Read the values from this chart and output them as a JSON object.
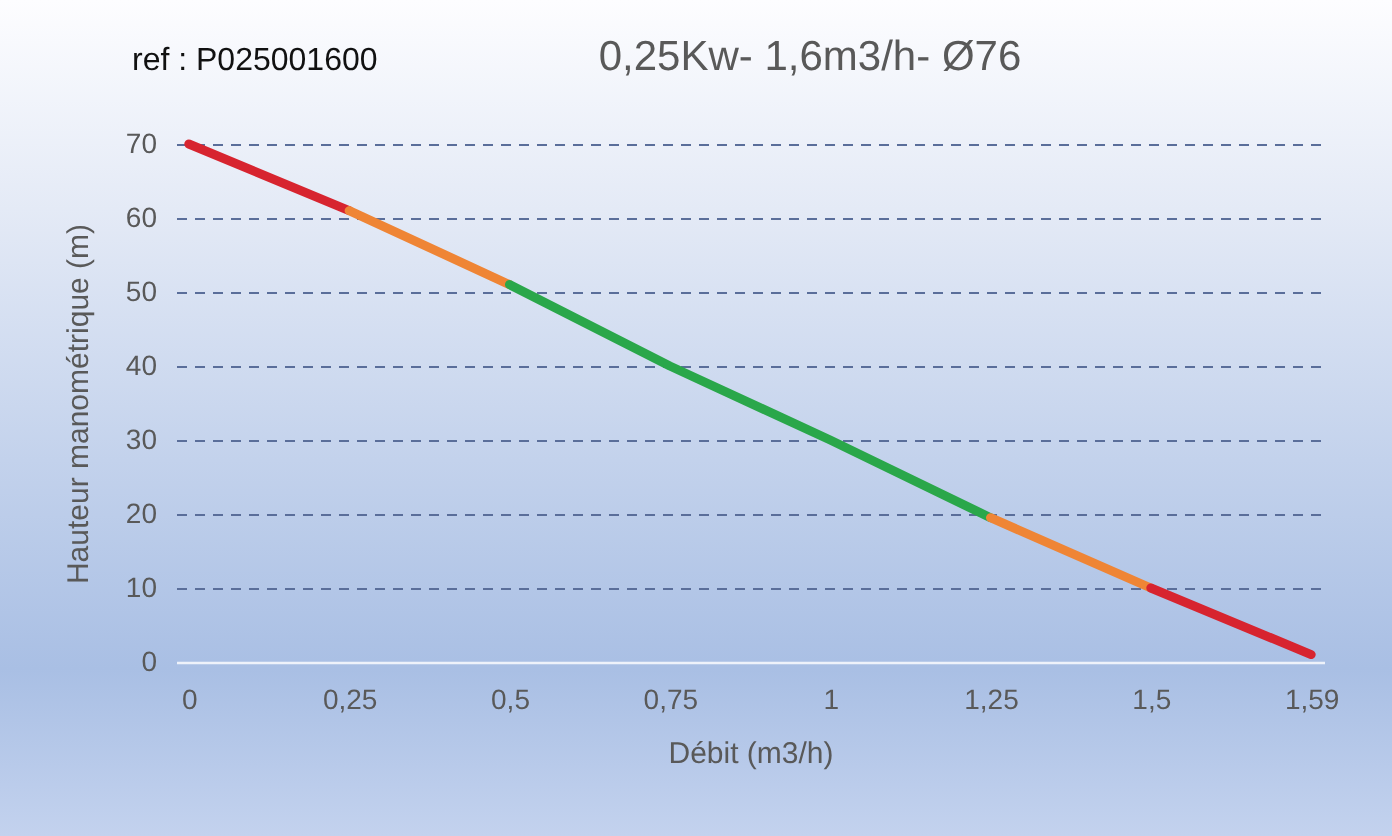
{
  "chart_data": {
    "type": "line",
    "title": "0,25Kw- 1,6m3/h- Ø76",
    "xlabel": "Débit (m3/h)",
    "ylabel": "Hauteur manométrique (m)",
    "annotations": [
      "ref : P025001600"
    ],
    "categories": [
      "0",
      "0,25",
      "0,5",
      "0,75",
      "1",
      "1,25",
      "1,5",
      "1,59"
    ],
    "series": [
      {
        "color": "#d7242f",
        "values": [
          70,
          61,
          null,
          null,
          null,
          null,
          null,
          null
        ]
      },
      {
        "color": "#ef8535",
        "values": [
          null,
          61,
          51,
          null,
          null,
          null,
          null,
          null
        ]
      },
      {
        "color": "#2aa74a",
        "values": [
          null,
          null,
          51,
          40,
          30,
          19.5,
          null,
          null
        ]
      },
      {
        "color": "#ef8535",
        "values": [
          null,
          null,
          null,
          null,
          null,
          19.5,
          10,
          null
        ]
      },
      {
        "color": "#d7242f",
        "values": [
          null,
          null,
          null,
          null,
          null,
          null,
          10,
          1
        ]
      }
    ],
    "ylim": [
      0,
      70
    ],
    "yticks": [
      0,
      10,
      20,
      30,
      40,
      50,
      60,
      70
    ],
    "grid": "y"
  }
}
